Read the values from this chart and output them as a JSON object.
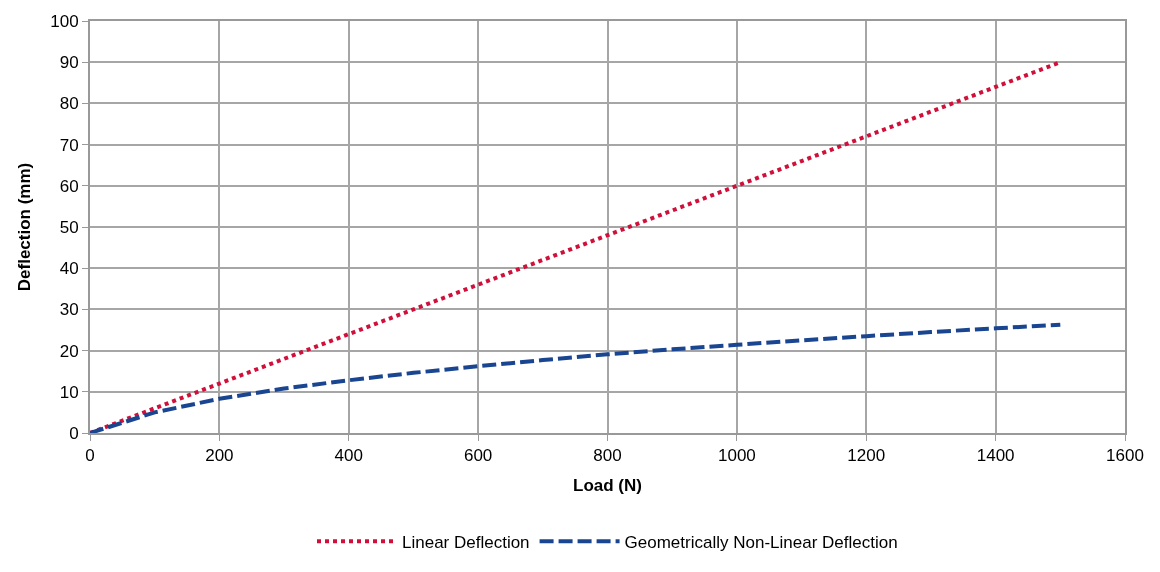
{
  "chart_data": {
    "type": "line",
    "xlabel": "Load (N)",
    "ylabel": "Deflection (mm)",
    "x": [
      0,
      100,
      200,
      300,
      400,
      500,
      600,
      700,
      800,
      900,
      1000,
      1100,
      1200,
      1300,
      1400,
      1500
    ],
    "series": [
      {
        "name": "Linear Deflection",
        "color": "#d0103a",
        "line_style": "dotted",
        "values": [
          0,
          6,
          12,
          18,
          24,
          30,
          36,
          42,
          48,
          54,
          60,
          66,
          72,
          78,
          84,
          90
        ]
      },
      {
        "name": "Geometrically Non-Linear Deflection",
        "color": "#1a4590",
        "line_style": "dashed",
        "values": [
          0,
          5,
          8.3,
          10.8,
          12.8,
          14.6,
          16.2,
          17.7,
          19.1,
          20.3,
          21.4,
          22.5,
          23.5,
          24.5,
          25.4,
          26.3
        ]
      }
    ],
    "xlim": [
      0,
      1600
    ],
    "xticks": [
      0,
      200,
      400,
      600,
      800,
      1000,
      1200,
      1400,
      1600
    ],
    "ylim": [
      0,
      100
    ],
    "yticks": [
      0,
      10,
      20,
      30,
      40,
      50,
      60,
      70,
      80,
      90,
      100
    ],
    "grid": true,
    "legend": "bottom",
    "marker": "none"
  }
}
